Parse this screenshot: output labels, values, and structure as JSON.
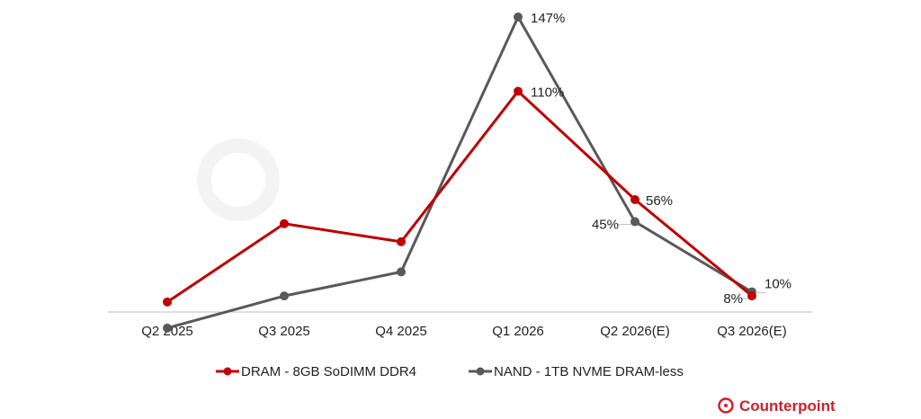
{
  "chart_data": {
    "type": "line",
    "categories": [
      "Q2 2025",
      "Q3 2025",
      "Q4 2025",
      "Q1 2026",
      "Q2 2026(E)",
      "Q3 2026(E)"
    ],
    "series": [
      {
        "name": "DRAM - 8GB SoDIMM DDR4",
        "color": "#c00000",
        "values": [
          5,
          44,
          35,
          110,
          56,
          8
        ],
        "labels": [
          "",
          "",
          "",
          "110%",
          "56%",
          "8%"
        ]
      },
      {
        "name": "NAND - 1TB NVME DRAM-less",
        "color": "#595959",
        "values": [
          -8,
          8,
          20,
          147,
          45,
          10
        ],
        "labels": [
          "",
          "",
          "",
          "147%",
          "45%",
          "10%"
        ]
      }
    ],
    "ylim": [
      -10,
      150
    ],
    "grid": false,
    "legend": "bottom"
  },
  "watermark": "Counterpoint",
  "logo": "Counterpoint"
}
